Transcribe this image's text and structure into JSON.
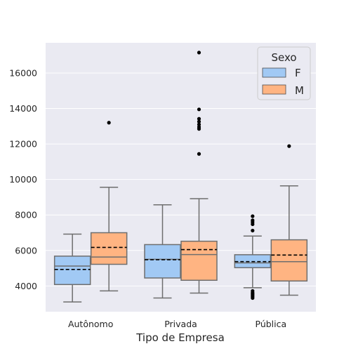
{
  "chart_data": {
    "type": "boxplot",
    "title": "",
    "xlabel": "Tipo de Empresa",
    "ylabel": "",
    "categories": [
      "Autônomo",
      "Privada",
      "Pública"
    ],
    "ylim": [
      2550,
      17700
    ],
    "yticks": [
      4000,
      6000,
      8000,
      10000,
      12000,
      14000,
      16000
    ],
    "grid": true,
    "legend": {
      "title": "Sexo",
      "placement": "top-right"
    },
    "series": [
      {
        "name": "F",
        "color": "#a1c9f4",
        "boxes": [
          {
            "whisker_low": 3100,
            "q1": 4080,
            "median": 5120,
            "q3": 5680,
            "whisker_high": 6920,
            "mean": 4930,
            "outliers": []
          },
          {
            "whisker_low": 3320,
            "q1": 4450,
            "median": 5500,
            "q3": 6330,
            "whisker_high": 8570,
            "mean": 5480,
            "outliers": []
          },
          {
            "whisker_low": 3900,
            "q1": 5030,
            "median": 5300,
            "q3": 5760,
            "whisker_high": 6810,
            "mean": 5370,
            "outliers": [
              7930,
              7700,
              7600,
              7480,
              7120,
              3720,
              3620,
              3550,
              3480,
              3400,
              3320
            ]
          }
        ]
      },
      {
        "name": "M",
        "color": "#ffb482",
        "boxes": [
          {
            "whisker_low": 3720,
            "q1": 5220,
            "median": 5630,
            "q3": 7000,
            "whisker_high": 9560,
            "mean": 6170,
            "outliers": [
              13200
            ]
          },
          {
            "whisker_low": 3600,
            "q1": 4320,
            "median": 5770,
            "q3": 6520,
            "whisker_high": 8920,
            "mean": 6050,
            "outliers": [
              17150,
              13950,
              13420,
              13260,
              13100,
              12960,
              12850,
              11440
            ]
          },
          {
            "whisker_low": 3480,
            "q1": 4280,
            "median": 5370,
            "q3": 6600,
            "whisker_high": 9640,
            "mean": 5740,
            "outliers": [
              11880
            ]
          }
        ]
      }
    ]
  }
}
